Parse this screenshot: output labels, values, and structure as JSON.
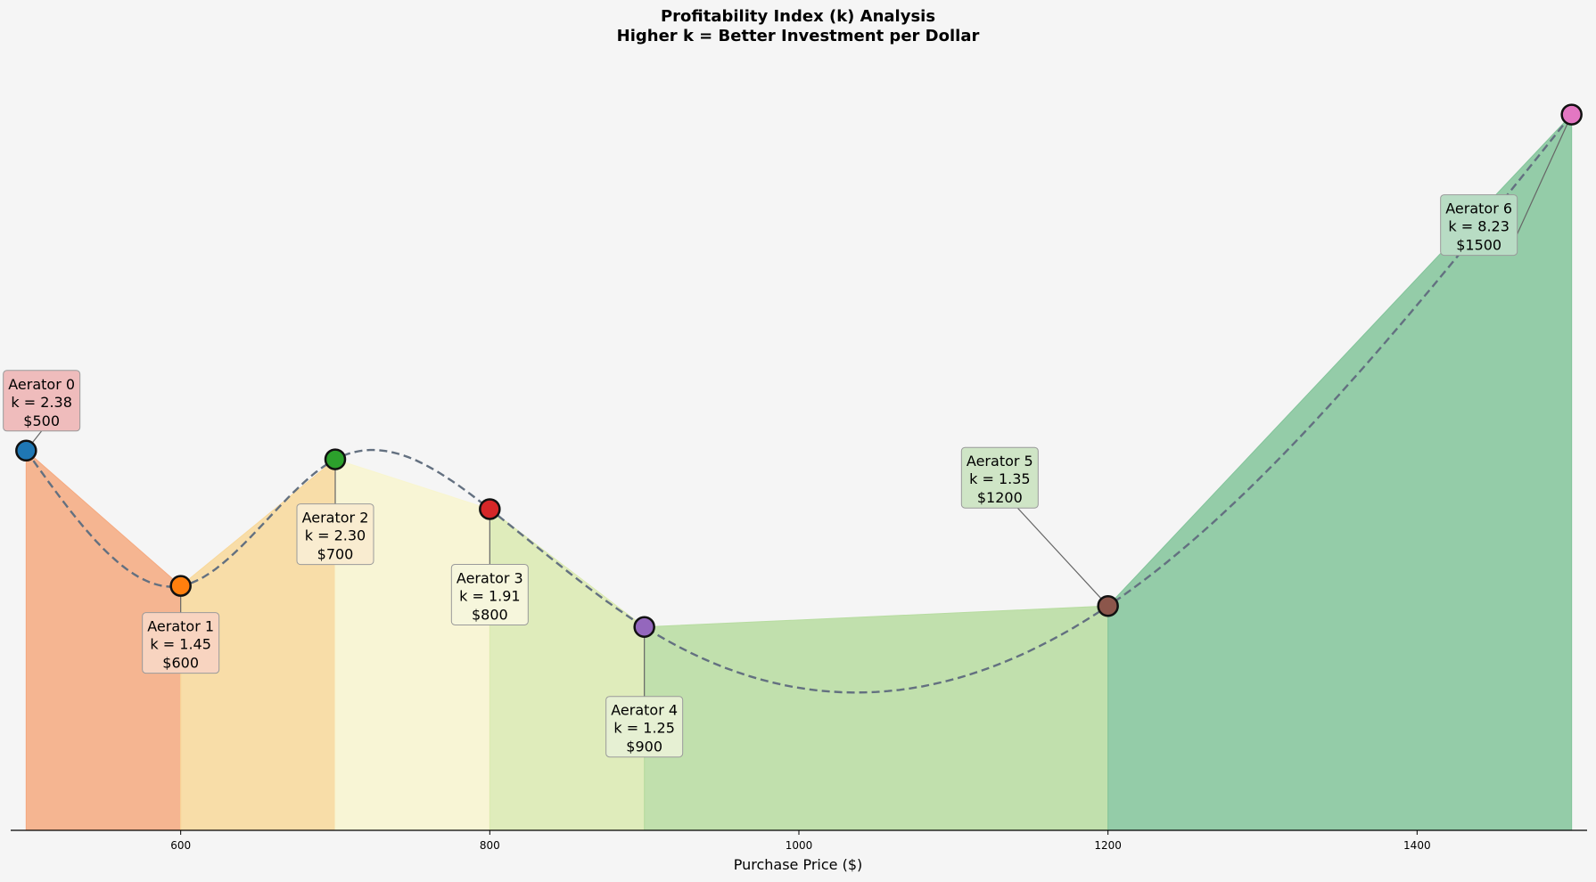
{
  "chart_data": {
    "type": "area",
    "title": "Profitability Index (k) Analysis",
    "subtitle": "Higher k = Better Investment per Dollar",
    "xlabel": "Purchase Price ($)",
    "ylabel": "",
    "xlim": [
      490,
      1510
    ],
    "ylim": [
      0,
      8.9
    ],
    "x_ticks": [
      600,
      800,
      1000,
      1200,
      1400
    ],
    "x_tick_labels": [
      "600",
      "800",
      "1000",
      "1200",
      "1400"
    ],
    "grid": false,
    "points": [
      {
        "name": "Aerator 0",
        "k_label": "k = 2.38",
        "price_label": "$500",
        "x": 500,
        "y": 4.35,
        "color": "#1f77b4",
        "fill": "#f5a97f",
        "box": "#efbcbc"
      },
      {
        "name": "Aerator 1",
        "k_label": "k = 1.45",
        "price_label": "$600",
        "x": 600,
        "y": 2.8,
        "color": "#ff7f0e",
        "fill": "#f8d89a",
        "box": "#f8d4c0"
      },
      {
        "name": "Aerator 2",
        "k_label": "k = 2.30",
        "price_label": "$700",
        "x": 700,
        "y": 4.25,
        "color": "#2ca02c",
        "fill": "#f8f5cf",
        "box": "#f9ecd0"
      },
      {
        "name": "Aerator 3",
        "k_label": "k = 1.91",
        "price_label": "$800",
        "x": 800,
        "y": 3.68,
        "color": "#d62728",
        "fill": "#dbeab0",
        "box": "#f6f6dc"
      },
      {
        "name": "Aerator 4",
        "k_label": "k = 1.25",
        "price_label": "$900",
        "x": 900,
        "y": 2.33,
        "color": "#9467bd",
        "fill": "#b7dca0",
        "box": "#e6f0d3"
      },
      {
        "name": "Aerator 5",
        "k_label": "k = 1.35",
        "price_label": "$1200",
        "x": 1200,
        "y": 2.57,
        "color": "#8c564b",
        "fill": "#82c49a",
        "box": "#cfe5c6"
      },
      {
        "name": "Aerator 6",
        "k_label": "k = 8.23",
        "price_label": "$1500",
        "x": 1500,
        "y": 8.2,
        "color": "#e377c2",
        "fill": "#82c49a",
        "box": "#b8dcc4"
      }
    ],
    "annotation_offsets": [
      [
        1,
        14
      ],
      [
        0,
        -16
      ],
      [
        0,
        -21
      ],
      [
        0,
        -24
      ],
      [
        0,
        -28
      ],
      [
        -7,
        36
      ],
      [
        -6,
        -31
      ]
    ],
    "curve_color": "#637080"
  }
}
